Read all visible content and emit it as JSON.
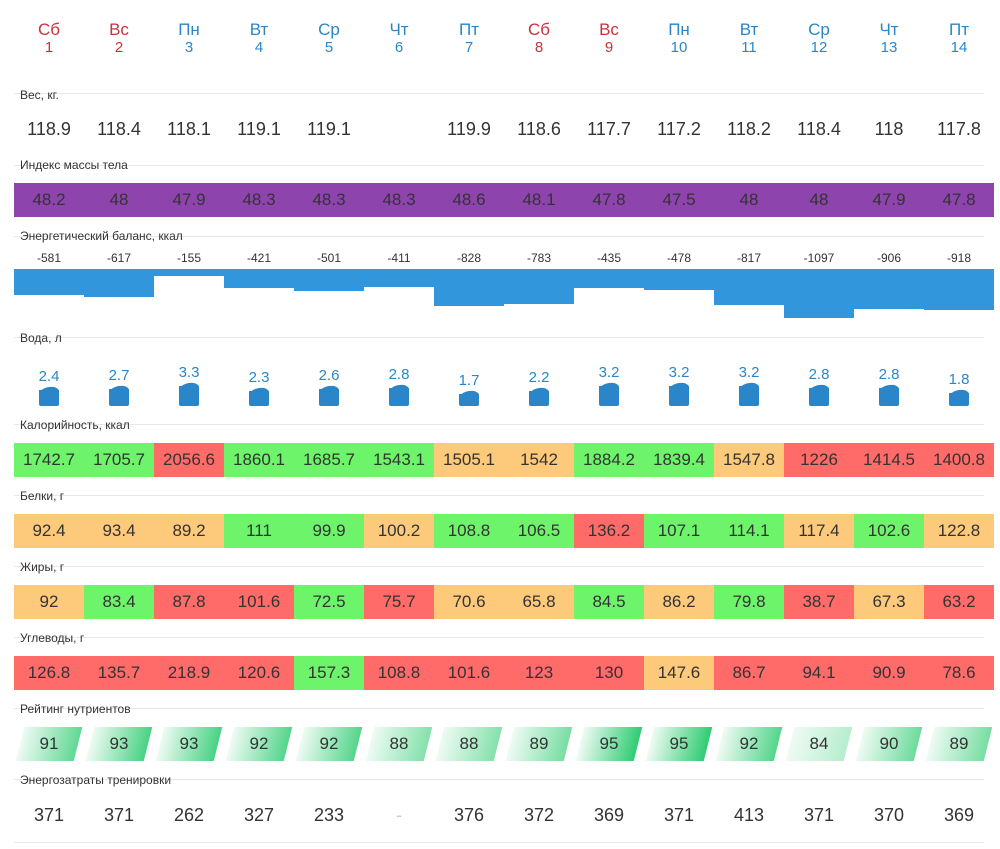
{
  "days": [
    {
      "dow": "Сб",
      "num": "1",
      "weekend": true
    },
    {
      "dow": "Вс",
      "num": "2",
      "weekend": true
    },
    {
      "dow": "Пн",
      "num": "3",
      "weekend": false
    },
    {
      "dow": "Вт",
      "num": "4",
      "weekend": false
    },
    {
      "dow": "Ср",
      "num": "5",
      "weekend": false
    },
    {
      "dow": "Чт",
      "num": "6",
      "weekend": false
    },
    {
      "dow": "Пт",
      "num": "7",
      "weekend": false
    },
    {
      "dow": "Сб",
      "num": "8",
      "weekend": true
    },
    {
      "dow": "Вс",
      "num": "9",
      "weekend": true
    },
    {
      "dow": "Пн",
      "num": "10",
      "weekend": false
    },
    {
      "dow": "Вт",
      "num": "11",
      "weekend": false
    },
    {
      "dow": "Ср",
      "num": "12",
      "weekend": false
    },
    {
      "dow": "Чт",
      "num": "13",
      "weekend": false
    },
    {
      "dow": "Пт",
      "num": "14",
      "weekend": false
    }
  ],
  "colors": {
    "weekend": "#c8323c",
    "weekday": "#2a86c8",
    "bmi": "#8e44ad",
    "energy": "#3196dc",
    "water": "#2a86c8",
    "good": "#6df46b",
    "warn": "#fdc97a",
    "bad": "#fe6b69",
    "nutrient_base": "#2ecc71"
  },
  "weight": {
    "label": "Вес, кг.",
    "values": [
      "118.9",
      "118.4",
      "118.1",
      "119.1",
      "119.1",
      "",
      "119.9",
      "118.6",
      "117.7",
      "117.2",
      "118.2",
      "118.4",
      "118",
      "117.8"
    ]
  },
  "bmi": {
    "label": "Индекс массы тела",
    "values": [
      "48.2",
      "48",
      "47.9",
      "48.3",
      "48.3",
      "48.3",
      "48.6",
      "48.1",
      "47.8",
      "47.5",
      "48",
      "48",
      "47.9",
      "47.8"
    ]
  },
  "energy": {
    "label": "Энергетический баланс, ккал",
    "values": [
      -581,
      -617,
      -155,
      -421,
      -501,
      -411,
      -828,
      -783,
      -435,
      -478,
      -817,
      -1097,
      -906,
      -918
    ]
  },
  "water": {
    "label": "Вода, л",
    "values": [
      2.4,
      2.7,
      3.3,
      2.3,
      2.6,
      2.8,
      1.7,
      2.2,
      3.2,
      3.2,
      3.2,
      2.8,
      2.8,
      1.8
    ]
  },
  "calories": {
    "label": "Калорийность, ккал",
    "values": [
      "1742.7",
      "1705.7",
      "2056.6",
      "1860.1",
      "1685.7",
      "1543.1",
      "1505.1",
      "1542",
      "1884.2",
      "1839.4",
      "1547.8",
      "1226",
      "1414.5",
      "1400.8"
    ],
    "status": [
      "good",
      "good",
      "bad",
      "good",
      "good",
      "good",
      "warn",
      "warn",
      "good",
      "good",
      "warn",
      "bad",
      "bad",
      "bad"
    ]
  },
  "protein": {
    "label": "Белки, г",
    "values": [
      "92.4",
      "93.4",
      "89.2",
      "111",
      "99.9",
      "100.2",
      "108.8",
      "106.5",
      "136.2",
      "107.1",
      "114.1",
      "117.4",
      "102.6",
      "122.8"
    ],
    "status": [
      "warn",
      "warn",
      "warn",
      "good",
      "good",
      "warn",
      "good",
      "good",
      "bad",
      "good",
      "good",
      "warn",
      "good",
      "warn"
    ]
  },
  "fat": {
    "label": "Жиры, г",
    "values": [
      "92",
      "83.4",
      "87.8",
      "101.6",
      "72.5",
      "75.7",
      "70.6",
      "65.8",
      "84.5",
      "86.2",
      "79.8",
      "38.7",
      "67.3",
      "63.2"
    ],
    "status": [
      "warn",
      "good",
      "bad",
      "bad",
      "good",
      "bad",
      "warn",
      "warn",
      "good",
      "warn",
      "good",
      "bad",
      "warn",
      "bad"
    ]
  },
  "carbs": {
    "label": "Углеводы, г",
    "values": [
      "126.8",
      "135.7",
      "218.9",
      "120.6",
      "157.3",
      "108.8",
      "101.6",
      "123",
      "130",
      "147.6",
      "86.7",
      "94.1",
      "90.9",
      "78.6"
    ],
    "status": [
      "bad",
      "bad",
      "bad",
      "bad",
      "good",
      "bad",
      "bad",
      "bad",
      "bad",
      "warn",
      "bad",
      "bad",
      "bad",
      "bad"
    ]
  },
  "nutrients": {
    "label": "Рейтинг нутриентов",
    "values": [
      91,
      93,
      93,
      92,
      92,
      88,
      88,
      89,
      95,
      95,
      92,
      84,
      90,
      89
    ]
  },
  "training": {
    "label": "Энергозатраты тренировки",
    "values": [
      "371",
      "371",
      "262",
      "327",
      "233",
      "-",
      "376",
      "372",
      "369",
      "371",
      "413",
      "371",
      "370",
      "369"
    ]
  }
}
